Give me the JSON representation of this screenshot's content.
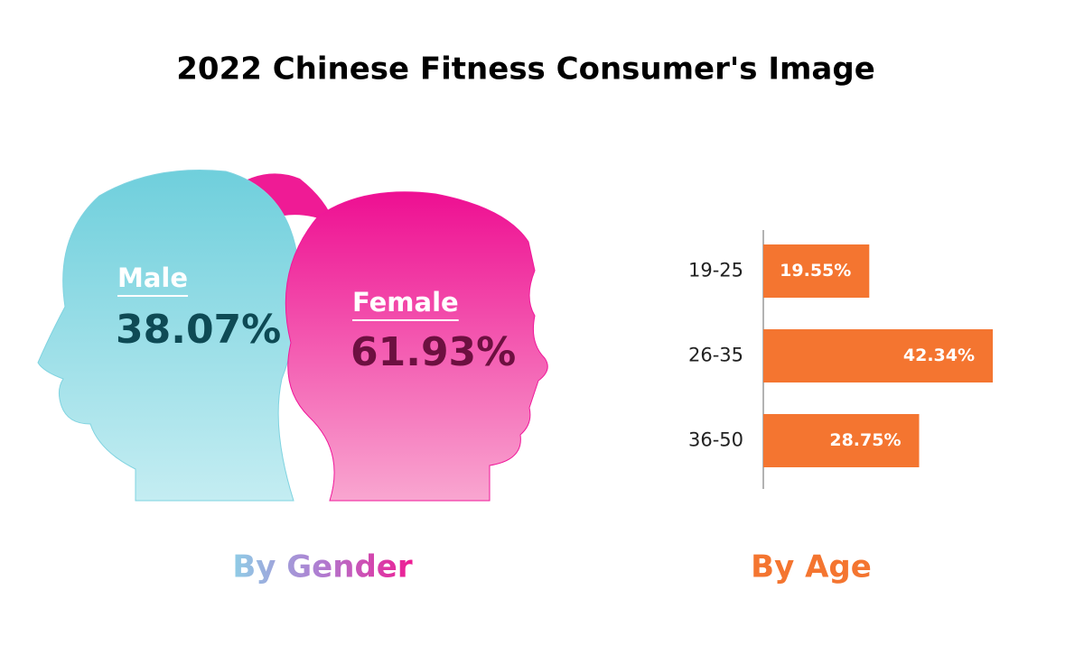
{
  "title": "2022 Chinese Fitness Consumer's Image",
  "chart_data": [
    {
      "type": "pictogram",
      "title": "By Gender",
      "categories": [
        "Male",
        "Female"
      ],
      "values": [
        38.07,
        61.93
      ],
      "value_labels": [
        "38.07%",
        "61.93%"
      ],
      "colors": [
        "#7fd3e0",
        "#f0189a"
      ]
    },
    {
      "type": "bar",
      "orientation": "horizontal",
      "title": "By Age",
      "categories": [
        "19-25",
        "26-35",
        "36-50"
      ],
      "values": [
        19.55,
        42.34,
        28.75
      ],
      "value_labels": [
        "19.55%",
        "42.34%",
        "28.75%"
      ],
      "color": "#f47530"
    }
  ]
}
